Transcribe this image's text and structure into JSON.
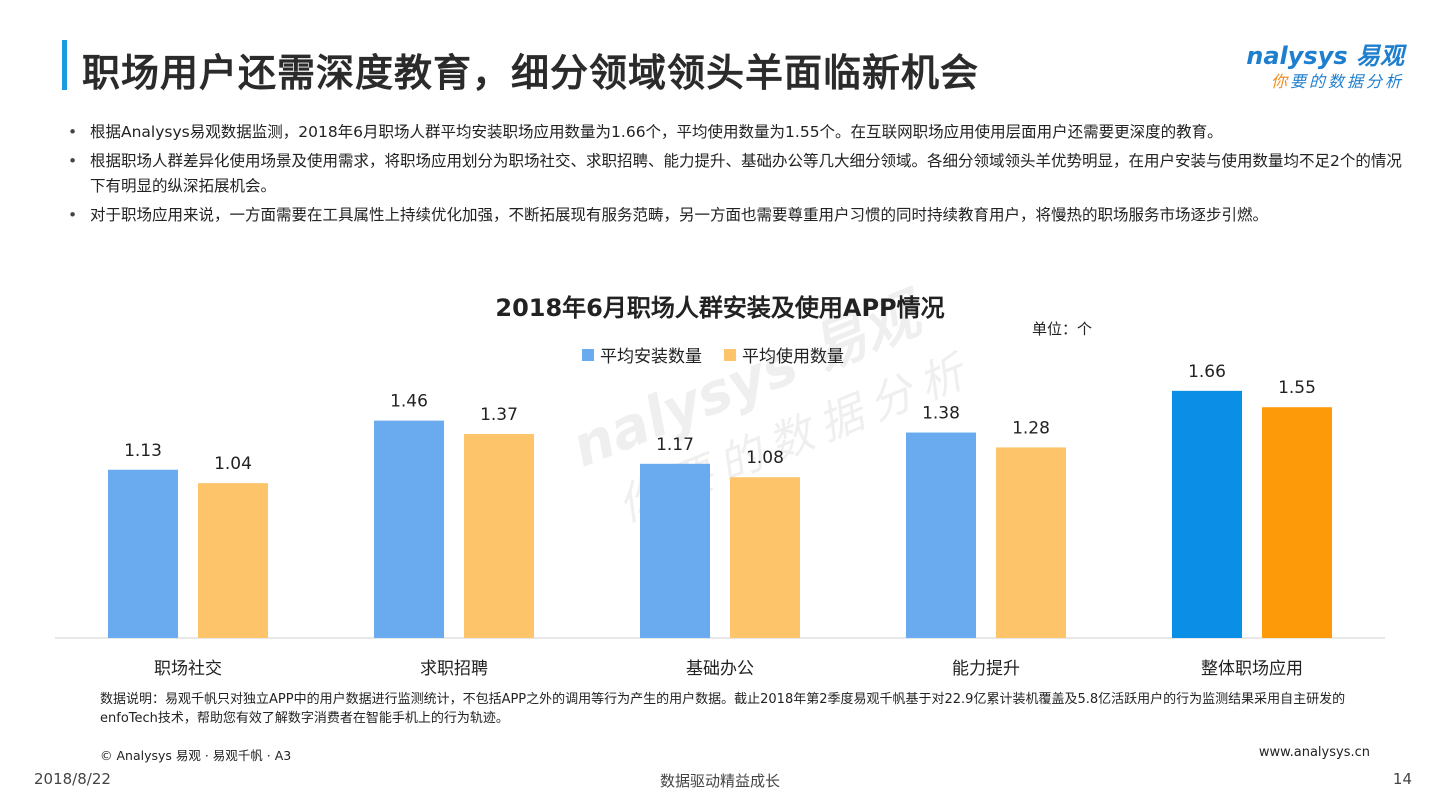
{
  "header": {
    "title": "职场用户还需深度教育，细分领域领头羊面临新机会",
    "logo_main": "nalysys 易观",
    "logo_sub_first": "你",
    "logo_sub_rest": "要的数据分析"
  },
  "bullets": [
    "根据Analysys易观数据监测，2018年6月职场人群平均安装职场应用数量为1.66个，平均使用数量为1.55个。在互联网职场应用使用层面用户还需要更深度的教育。",
    "根据职场人群差异化使用场景及使用需求，将职场应用划分为职场社交、求职招聘、能力提升、基础办公等几大细分领域。各细分领域领头羊优势明显，在用户安装与使用数量均不足2个的情况下有明显的纵深拓展机会。",
    "对于职场应用来说，一方面需要在工具属性上持续优化加强，不断拓展现有服务范畴，另一方面也需要尊重用户习惯的同时持续教育用户，将慢热的职场服务市场逐步引燃。"
  ],
  "chart_data": {
    "type": "bar",
    "title": "2018年6月职场人群安装及使用APP情况",
    "unit_label": "单位：个",
    "categories": [
      "职场社交",
      "求职招聘",
      "基础办公",
      "能力提升",
      "整体职场应用"
    ],
    "series": [
      {
        "name": "平均安装数量",
        "values": [
          1.13,
          1.46,
          1.17,
          1.38,
          1.66
        ],
        "color": "#6aaaee",
        "highlight_color": "#0a8ee6"
      },
      {
        "name": "平均使用数量",
        "values": [
          1.04,
          1.37,
          1.08,
          1.28,
          1.55
        ],
        "color": "#fdc46a",
        "highlight_color": "#fd9a0a"
      }
    ],
    "highlight_category": "整体职场应用",
    "ylim": [
      0,
      1.8
    ],
    "grid": false,
    "legend_position": "top-center",
    "value_labels": true
  },
  "watermark": {
    "main": "nalysys 易观",
    "sub": "你要的数据分析"
  },
  "footer": {
    "note": "数据说明：易观千帆只对独立APP中的用户数据进行监测统计，不包括APP之外的调用等行为产生的用户数据。截止2018年第2季度易观千帆基于对22.9亿累计装机覆盖及5.8亿活跃用户的行为监测结果采用自主研发的enfoTech技术，帮助您有效了解数字消费者在智能手机上的行为轨迹。",
    "copyright": "© Analysys 易观 · 易观千帆 · A3",
    "website": "www.analysys.cn",
    "date": "2018/8/22",
    "slogan": "数据驱动精益成长",
    "page": "14"
  },
  "colors": {
    "accent": "#1c9be0",
    "brand_blue": "#1f7fcf",
    "brand_orange": "#f08a1c",
    "axis": "#d0d0d0"
  }
}
